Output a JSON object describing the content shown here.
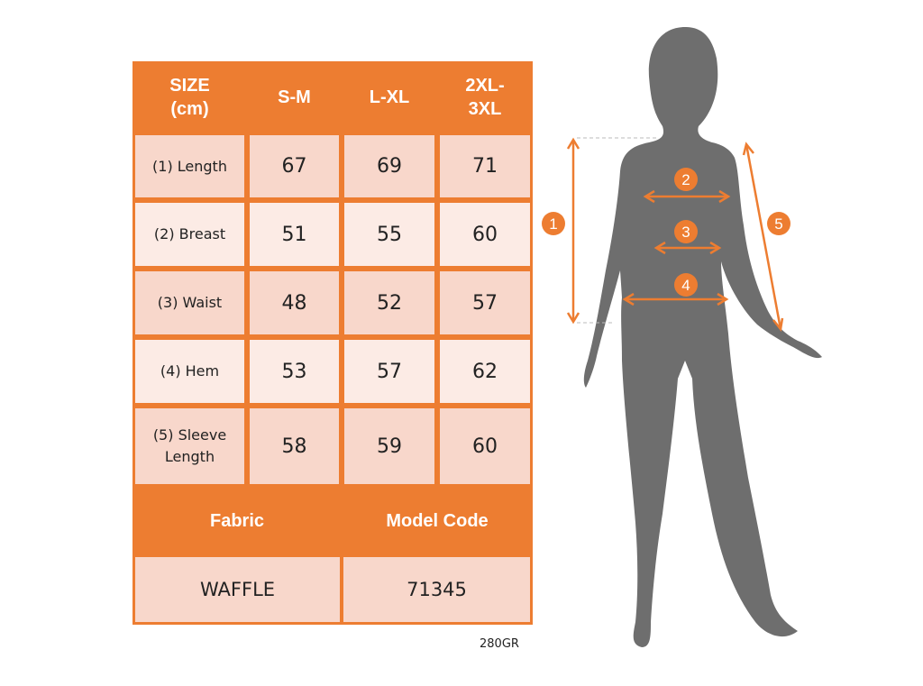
{
  "colors": {
    "accent": "#ED7D31",
    "row_dark": "#F8D7CB",
    "row_light": "#FCEBE5",
    "silhouette": "#6E6E6E"
  },
  "table": {
    "headers": [
      "SIZE\n(cm)",
      "S-M",
      "L-XL",
      "2XL-\n3XL"
    ],
    "rows": [
      {
        "label": "(1) Length",
        "values": [
          "67",
          "69",
          "71"
        ]
      },
      {
        "label": "(2) Breast",
        "values": [
          "51",
          "55",
          "60"
        ]
      },
      {
        "label": "(3) Waist",
        "values": [
          "48",
          "52",
          "57"
        ]
      },
      {
        "label": "(4) Hem",
        "values": [
          "53",
          "57",
          "62"
        ]
      },
      {
        "label": "(5) Sleeve\nLength",
        "values": [
          "58",
          "59",
          "60"
        ]
      }
    ],
    "footer_headers": [
      "Fabric",
      "Model Code"
    ],
    "footer_values": [
      "WAFFLE",
      "71345"
    ]
  },
  "note": "280GR",
  "figure": {
    "markers": [
      "1",
      "2",
      "3",
      "4",
      "5"
    ]
  }
}
